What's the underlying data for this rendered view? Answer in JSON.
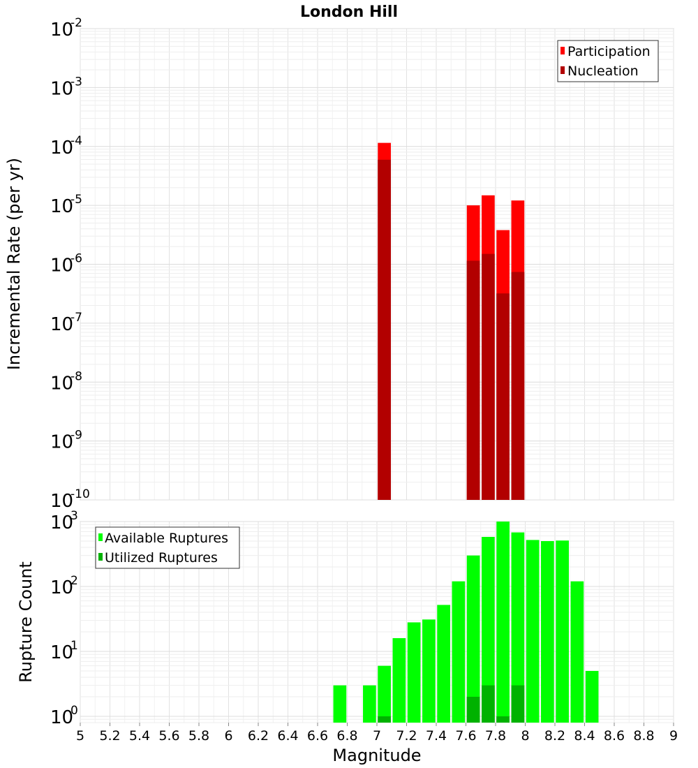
{
  "chart_data": [
    {
      "type": "bar",
      "title": "London Hill",
      "xlabel": "Magnitude",
      "ylabel": "Incremental Rate (per yr)",
      "yscale": "log",
      "xlim": [
        5,
        9
      ],
      "ylim": [
        1e-10,
        0.01
      ],
      "ytick_exponents": [
        -10,
        -9,
        -8,
        -7,
        -6,
        -5,
        -4,
        -3,
        -2
      ],
      "legend_position": "top-right",
      "series": [
        {
          "name": "Participation",
          "color": "#ff0000",
          "points": [
            {
              "x": 7.05,
              "y": 0.000115
            },
            {
              "x": 7.65,
              "y": 1e-05
            },
            {
              "x": 7.75,
              "y": 1.48e-05
            },
            {
              "x": 7.85,
              "y": 3.8e-06
            },
            {
              "x": 7.95,
              "y": 1.21e-05
            }
          ]
        },
        {
          "name": "Nucleation",
          "color": "#b20000",
          "points": [
            {
              "x": 7.05,
              "y": 5.95e-05
            },
            {
              "x": 7.65,
              "y": 1.15e-06
            },
            {
              "x": 7.75,
              "y": 1.5e-06
            },
            {
              "x": 7.85,
              "y": 3.2e-07
            },
            {
              "x": 7.95,
              "y": 7.4e-07
            }
          ]
        }
      ]
    },
    {
      "type": "bar",
      "title": "",
      "xlabel": "Magnitude",
      "ylabel": "Rupture Count",
      "yscale": "log",
      "xlim": [
        5,
        9
      ],
      "ylim": [
        0.8,
        1000
      ],
      "ytick_exponents": [
        0,
        1,
        2,
        3
      ],
      "x_ticks": [
        "5",
        "5.2",
        "5.4",
        "5.6",
        "5.8",
        "6",
        "6.2",
        "6.4",
        "6.6",
        "6.8",
        "7",
        "7.2",
        "7.4",
        "7.6",
        "7.8",
        "8",
        "8.2",
        "8.4",
        "8.6",
        "8.8",
        "9"
      ],
      "legend_position": "top-left",
      "series": [
        {
          "name": "Available Ruptures",
          "color": "#00ff00",
          "points": [
            {
              "x": 6.75,
              "y": 3
            },
            {
              "x": 6.95,
              "y": 3
            },
            {
              "x": 7.05,
              "y": 6
            },
            {
              "x": 7.15,
              "y": 16
            },
            {
              "x": 7.25,
              "y": 28
            },
            {
              "x": 7.35,
              "y": 31
            },
            {
              "x": 7.45,
              "y": 52
            },
            {
              "x": 7.55,
              "y": 120
            },
            {
              "x": 7.65,
              "y": 300
            },
            {
              "x": 7.75,
              "y": 580
            },
            {
              "x": 7.85,
              "y": 1000
            },
            {
              "x": 7.95,
              "y": 680
            },
            {
              "x": 8.05,
              "y": 520
            },
            {
              "x": 8.15,
              "y": 500
            },
            {
              "x": 8.25,
              "y": 510
            },
            {
              "x": 8.35,
              "y": 120
            },
            {
              "x": 8.45,
              "y": 5
            }
          ]
        },
        {
          "name": "Utilized Ruptures",
          "color": "#00b200",
          "points": [
            {
              "x": 7.05,
              "y": 1
            },
            {
              "x": 7.65,
              "y": 2
            },
            {
              "x": 7.75,
              "y": 3
            },
            {
              "x": 7.85,
              "y": 1
            },
            {
              "x": 7.95,
              "y": 3
            }
          ]
        }
      ]
    }
  ]
}
